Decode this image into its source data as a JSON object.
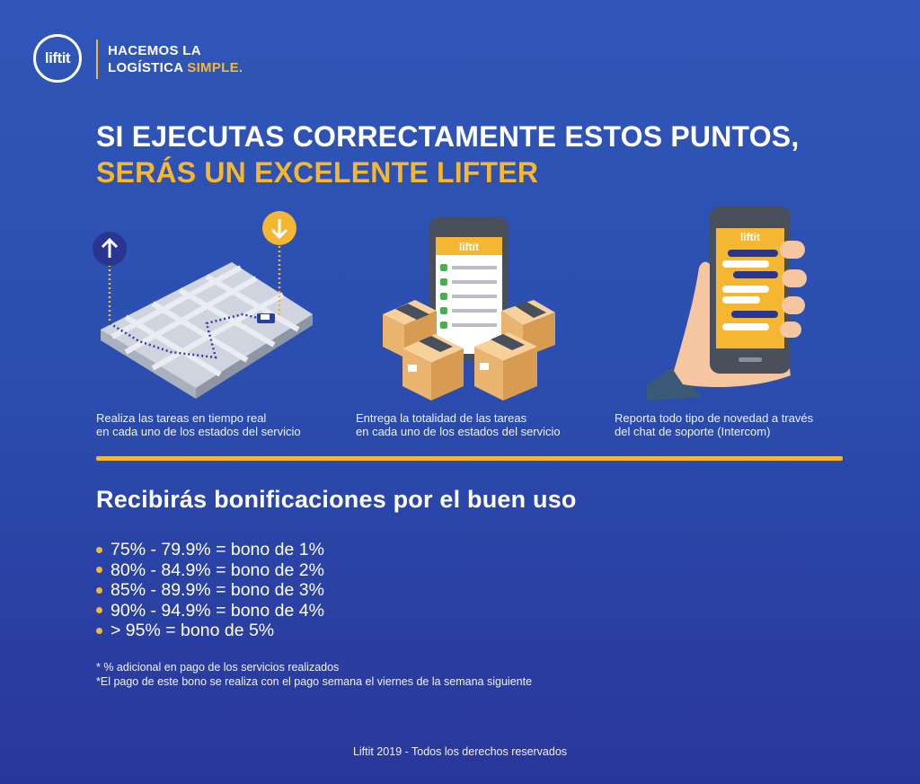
{
  "brand": {
    "logo_text": "liftit",
    "tagline_line1": "HACEMOS LA",
    "tagline_line2_a": "LOGÍSTICA ",
    "tagline_line2_b": "SIMPLE."
  },
  "headline": {
    "line1": "SI EJECUTAS CORRECTAMENTE ESTOS PUNTOS,",
    "line2": "SERÁS UN EXCELENTE LIFTER"
  },
  "points": [
    {
      "line1": "Realiza las tareas en tiempo real",
      "line2": "en cada uno de los estados del servicio",
      "icon": "map-route-icon"
    },
    {
      "line1": "Entrega la totalidad de las tareas",
      "line2": "en cada uno de los estados del servicio",
      "icon": "phone-boxes-icon"
    },
    {
      "line1": "Reporta todo tipo de novedad a través",
      "line2": "del chat de soporte (Intercom)",
      "icon": "hand-phone-chat-icon"
    }
  ],
  "bonus": {
    "title": "Recibirás bonificaciones por el buen uso",
    "items": [
      "75% - 79.9% = bono de 1%",
      "80% - 84.9% = bono de 2%",
      "85% - 89.9% = bono de 3%",
      "90% - 94.9% = bono de 4%",
      "> 95% = bono de 5%"
    ],
    "notes": [
      "* % adicional en pago de los servicios realizados",
      "*El pago de este bono se realiza con el pago semana el viernes de la semana siguiente"
    ]
  },
  "footer": "Liftit 2019 - Todos los derechos reservados",
  "phone_brand": "liftit",
  "colors": {
    "background": "#2f56b8",
    "accent": "#f5b731",
    "text": "#ffffff"
  }
}
